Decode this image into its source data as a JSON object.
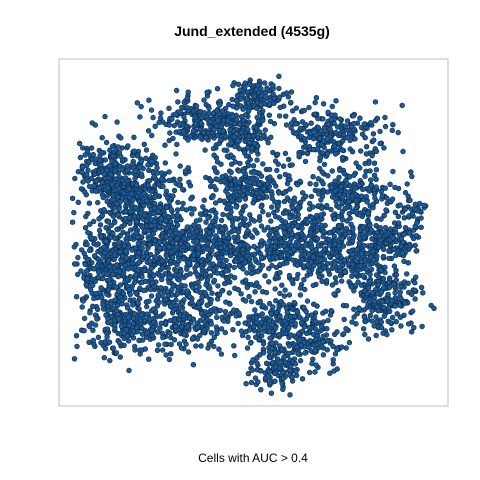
{
  "chart_data": {
    "type": "scatter",
    "title": "Jund_extended (4535g)",
    "xlabel": "Cells with AUC > 0.4",
    "ylabel": "",
    "axes_visible": false,
    "grid": false,
    "legend": "none",
    "point_count_approx": 4500,
    "colors": {
      "point_fill": "#1f5a93",
      "point_outline": "#0b2a4a",
      "frame": "#bdbdbd"
    },
    "xlim": [
      0,
      1
    ],
    "ylim": [
      0,
      1
    ],
    "clusters": [
      {
        "x": 0.5,
        "y": 0.92,
        "sx": 0.04,
        "sy": 0.025,
        "n": 120
      },
      {
        "x": 0.36,
        "y": 0.84,
        "sx": 0.07,
        "sy": 0.035,
        "n": 260
      },
      {
        "x": 0.47,
        "y": 0.79,
        "sx": 0.035,
        "sy": 0.035,
        "n": 120
      },
      {
        "x": 0.7,
        "y": 0.8,
        "sx": 0.08,
        "sy": 0.045,
        "n": 260
      },
      {
        "x": 0.1,
        "y": 0.67,
        "sx": 0.045,
        "sy": 0.06,
        "n": 260
      },
      {
        "x": 0.2,
        "y": 0.6,
        "sx": 0.055,
        "sy": 0.08,
        "n": 360
      },
      {
        "x": 0.48,
        "y": 0.64,
        "sx": 0.06,
        "sy": 0.03,
        "n": 200
      },
      {
        "x": 0.75,
        "y": 0.62,
        "sx": 0.07,
        "sy": 0.04,
        "n": 220
      },
      {
        "x": 0.1,
        "y": 0.4,
        "sx": 0.05,
        "sy": 0.08,
        "n": 320
      },
      {
        "x": 0.26,
        "y": 0.42,
        "sx": 0.07,
        "sy": 0.08,
        "n": 420
      },
      {
        "x": 0.43,
        "y": 0.45,
        "sx": 0.07,
        "sy": 0.06,
        "n": 360
      },
      {
        "x": 0.6,
        "y": 0.47,
        "sx": 0.05,
        "sy": 0.06,
        "n": 260
      },
      {
        "x": 0.75,
        "y": 0.44,
        "sx": 0.06,
        "sy": 0.06,
        "n": 300
      },
      {
        "x": 0.87,
        "y": 0.48,
        "sx": 0.045,
        "sy": 0.035,
        "n": 140
      },
      {
        "x": 0.85,
        "y": 0.3,
        "sx": 0.05,
        "sy": 0.05,
        "n": 220
      },
      {
        "x": 0.14,
        "y": 0.21,
        "sx": 0.06,
        "sy": 0.05,
        "n": 220
      },
      {
        "x": 0.33,
        "y": 0.24,
        "sx": 0.06,
        "sy": 0.05,
        "n": 220
      },
      {
        "x": 0.55,
        "y": 0.22,
        "sx": 0.05,
        "sy": 0.05,
        "n": 200
      },
      {
        "x": 0.55,
        "y": 0.08,
        "sx": 0.04,
        "sy": 0.03,
        "n": 110
      },
      {
        "x": 0.66,
        "y": 0.18,
        "sx": 0.04,
        "sy": 0.05,
        "n": 140
      },
      {
        "x": 0.93,
        "y": 0.57,
        "sx": 0.02,
        "sy": 0.015,
        "n": 25
      }
    ]
  }
}
